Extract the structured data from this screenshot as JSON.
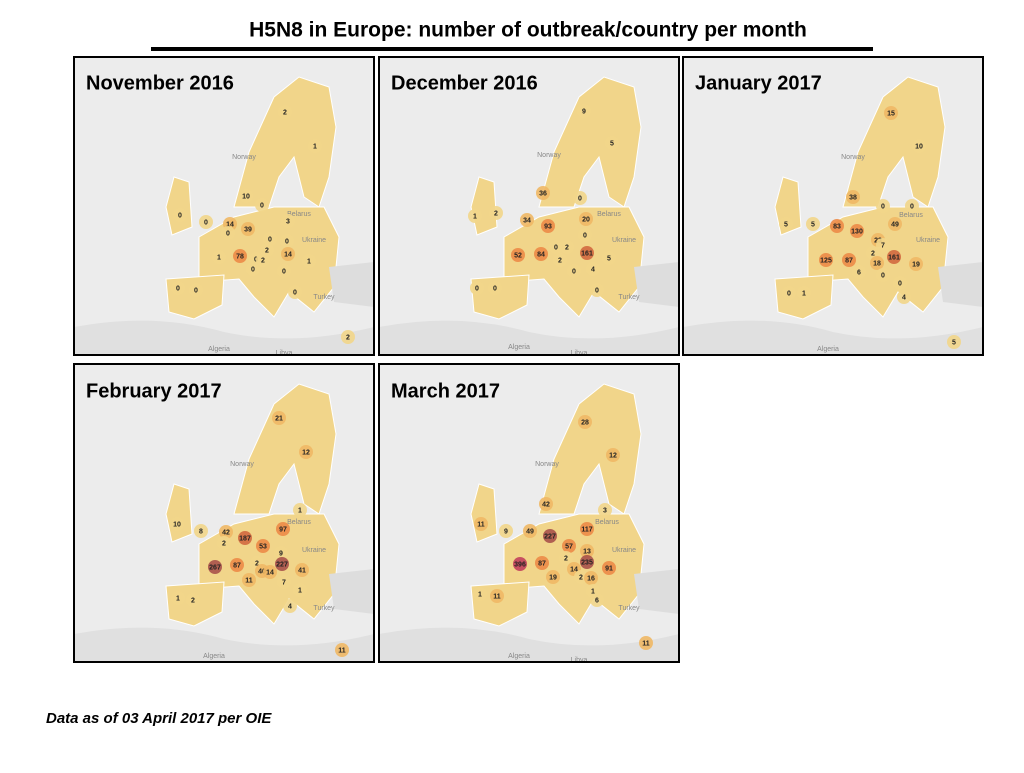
{
  "title": "H5N8 in Europe: number of outbreak/country per month",
  "footnote": "Data as of 03 April 2017 per OIE",
  "maps": [
    {
      "title": "November 2016",
      "place_labels": [
        "Norway",
        "Belarus",
        "Ukraine",
        "Turkey",
        "Algeria",
        "Libya"
      ],
      "counts": [
        2,
        1,
        10,
        0,
        0,
        0,
        14,
        3,
        0,
        39,
        0,
        0,
        2,
        14,
        1,
        78,
        0,
        2,
        1,
        0,
        0,
        0,
        0,
        0,
        2
      ]
    },
    {
      "title": "December 2016",
      "place_labels": [
        "Norway",
        "Belarus",
        "Ukraine",
        "Turkey",
        "Algeria",
        "Libya"
      ],
      "counts": [
        9,
        5,
        36,
        0,
        2,
        1,
        34,
        93,
        20,
        0,
        52,
        84,
        0,
        2,
        161,
        5,
        2,
        4,
        0,
        0,
        0,
        0
      ]
    },
    {
      "title": "January 2017",
      "place_labels": [
        "Norway",
        "Belarus",
        "Ukraine",
        "Algeria"
      ],
      "counts": [
        15,
        10,
        38,
        0,
        0,
        5,
        5,
        83,
        130,
        49,
        23,
        125,
        87,
        2,
        7,
        18,
        161,
        19,
        6,
        0,
        0,
        4,
        0,
        1,
        5
      ]
    },
    {
      "title": "February 2017",
      "place_labels": [
        "Norway",
        "Belarus",
        "Ukraine",
        "Turkey",
        "Algeria"
      ],
      "counts": [
        21,
        12,
        1,
        10,
        8,
        42,
        187,
        97,
        2,
        53,
        9,
        267,
        87,
        2,
        40,
        14,
        227,
        41,
        11,
        7,
        1,
        4,
        1,
        2,
        11
      ]
    },
    {
      "title": "March 2017",
      "place_labels": [
        "Norway",
        "Belarus",
        "Ukraine",
        "Turkey",
        "Algeria",
        "Libya"
      ],
      "counts": [
        28,
        12,
        42,
        3,
        11,
        9,
        49,
        227,
        117,
        57,
        13,
        396,
        87,
        2,
        235,
        14,
        91,
        19,
        2,
        16,
        1,
        6,
        1,
        11,
        11
      ]
    }
  ]
}
